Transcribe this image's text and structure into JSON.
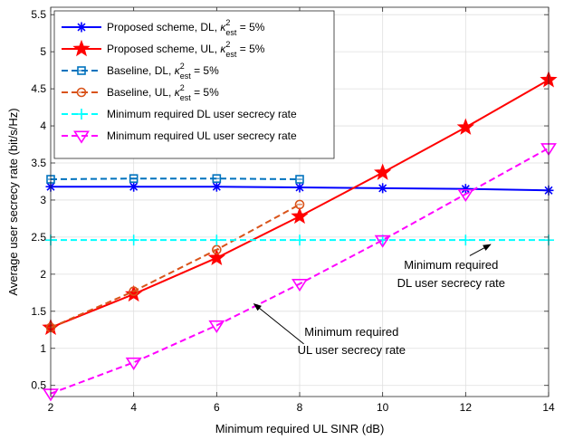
{
  "chart_data": {
    "type": "line",
    "xlabel": "Minimum required UL SINR (dB)",
    "ylabel": "Average user secrecy rate (bit/s/Hz)",
    "xlim": [
      2,
      14
    ],
    "ylim": [
      0.35,
      5.6
    ],
    "xticks": [
      2,
      4,
      6,
      8,
      10,
      12,
      14
    ],
    "yticks": [
      0.5,
      1,
      1.5,
      2,
      2.5,
      3,
      3.5,
      4,
      4.5,
      5,
      5.5
    ],
    "grid": true,
    "legend_position": "top-left",
    "series": [
      {
        "name": "Proposed scheme, DL, κ²est = 5%",
        "legend_main": "Proposed scheme, DL, ",
        "color": "#0000ff",
        "dash": "solid",
        "marker": "asterisk",
        "x": [
          2,
          4,
          6,
          8,
          10,
          12,
          14
        ],
        "y": [
          3.18,
          3.18,
          3.18,
          3.17,
          3.16,
          3.15,
          3.13
        ]
      },
      {
        "name": "Proposed scheme, UL, κ²est = 5%",
        "legend_main": "Proposed scheme, UL, ",
        "color": "#ff0000",
        "dash": "solid",
        "marker": "star",
        "x": [
          2,
          4,
          6,
          8,
          10,
          12,
          14
        ],
        "y": [
          1.28,
          1.73,
          2.22,
          2.78,
          3.37,
          3.98,
          4.62
        ]
      },
      {
        "name": "Baseline, DL, κ²est = 5%",
        "legend_main": "Baseline, DL, ",
        "color": "#0072bd",
        "dash": "dashed",
        "marker": "square",
        "x": [
          2,
          4,
          6,
          8
        ],
        "y": [
          3.28,
          3.29,
          3.29,
          3.28
        ]
      },
      {
        "name": "Baseline, UL, κ²est = 5%",
        "legend_main": "Baseline, UL, ",
        "color": "#d95319",
        "dash": "dashed",
        "marker": "circle",
        "x": [
          2,
          4,
          6,
          8
        ],
        "y": [
          1.28,
          1.77,
          2.33,
          2.94
        ]
      },
      {
        "name": "Minimum required DL user secrecy rate",
        "legend_main": "Minimum required DL user secrecy rate",
        "color": "#00ffff",
        "dash": "dashed",
        "marker": "plus",
        "x": [
          2,
          4,
          6,
          8,
          10,
          12,
          14
        ],
        "y": [
          2.46,
          2.46,
          2.46,
          2.46,
          2.46,
          2.46,
          2.46
        ]
      },
      {
        "name": "Minimum required UL user secrecy rate",
        "legend_main": "Minimum required UL user secrecy rate",
        "color": "#ff00ff",
        "dash": "dashed",
        "marker": "triangle-down",
        "x": [
          2,
          4,
          6,
          8,
          10,
          12,
          14
        ],
        "y": [
          0.39,
          0.81,
          1.31,
          1.87,
          2.46,
          3.08,
          3.7
        ]
      }
    ],
    "legend_suffix": {
      "kappa": "κ",
      "sup": "2",
      "sub": "est",
      "tail": " = 5%"
    },
    "annotations": [
      {
        "lines": [
          "Minimum required",
          "DL user secrecy rate"
        ],
        "text_x": 11.65,
        "text_y": 2.07,
        "arrow_from": [
          12.1,
          2.25
        ],
        "arrow_to": [
          12.6,
          2.4
        ]
      },
      {
        "lines": [
          "Minimum required",
          "UL user secrecy rate"
        ],
        "text_x": 9.25,
        "text_y": 1.17,
        "arrow_from": [
          8.1,
          1.06
        ],
        "arrow_to": [
          6.9,
          1.6
        ]
      }
    ]
  }
}
